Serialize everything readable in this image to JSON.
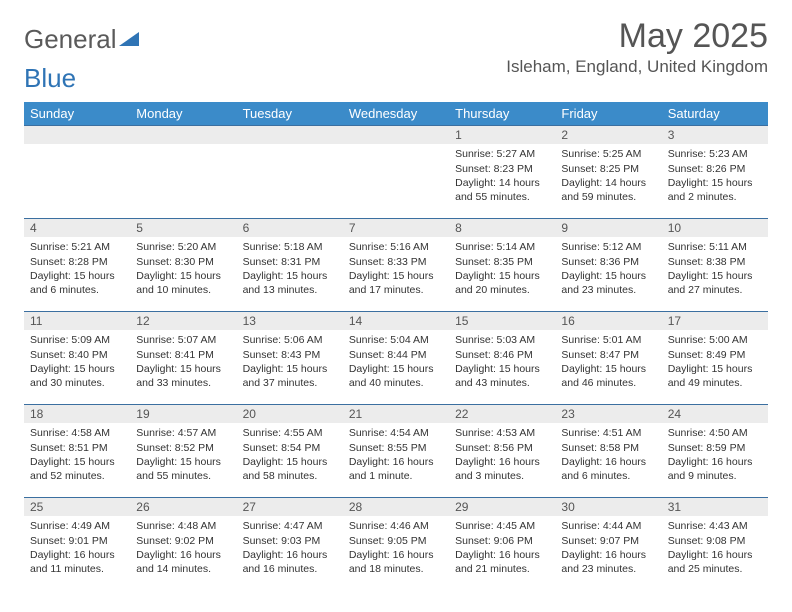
{
  "logo": {
    "text1": "General",
    "text2": "Blue",
    "color1": "#5a5a5a",
    "color2": "#2f74b5"
  },
  "title": "May 2025",
  "location": "Isleham, England, United Kingdom",
  "header_bg": "#3b8bc9",
  "rule_color": "#3b6fa0",
  "dayrow_bg": "#ececec",
  "weekdays": [
    "Sunday",
    "Monday",
    "Tuesday",
    "Wednesday",
    "Thursday",
    "Friday",
    "Saturday"
  ],
  "weeks": [
    [
      null,
      null,
      null,
      null,
      {
        "n": "1",
        "sr": "Sunrise: 5:27 AM",
        "ss": "Sunset: 8:23 PM",
        "d1": "Daylight: 14 hours",
        "d2": "and 55 minutes."
      },
      {
        "n": "2",
        "sr": "Sunrise: 5:25 AM",
        "ss": "Sunset: 8:25 PM",
        "d1": "Daylight: 14 hours",
        "d2": "and 59 minutes."
      },
      {
        "n": "3",
        "sr": "Sunrise: 5:23 AM",
        "ss": "Sunset: 8:26 PM",
        "d1": "Daylight: 15 hours",
        "d2": "and 2 minutes."
      }
    ],
    [
      {
        "n": "4",
        "sr": "Sunrise: 5:21 AM",
        "ss": "Sunset: 8:28 PM",
        "d1": "Daylight: 15 hours",
        "d2": "and 6 minutes."
      },
      {
        "n": "5",
        "sr": "Sunrise: 5:20 AM",
        "ss": "Sunset: 8:30 PM",
        "d1": "Daylight: 15 hours",
        "d2": "and 10 minutes."
      },
      {
        "n": "6",
        "sr": "Sunrise: 5:18 AM",
        "ss": "Sunset: 8:31 PM",
        "d1": "Daylight: 15 hours",
        "d2": "and 13 minutes."
      },
      {
        "n": "7",
        "sr": "Sunrise: 5:16 AM",
        "ss": "Sunset: 8:33 PM",
        "d1": "Daylight: 15 hours",
        "d2": "and 17 minutes."
      },
      {
        "n": "8",
        "sr": "Sunrise: 5:14 AM",
        "ss": "Sunset: 8:35 PM",
        "d1": "Daylight: 15 hours",
        "d2": "and 20 minutes."
      },
      {
        "n": "9",
        "sr": "Sunrise: 5:12 AM",
        "ss": "Sunset: 8:36 PM",
        "d1": "Daylight: 15 hours",
        "d2": "and 23 minutes."
      },
      {
        "n": "10",
        "sr": "Sunrise: 5:11 AM",
        "ss": "Sunset: 8:38 PM",
        "d1": "Daylight: 15 hours",
        "d2": "and 27 minutes."
      }
    ],
    [
      {
        "n": "11",
        "sr": "Sunrise: 5:09 AM",
        "ss": "Sunset: 8:40 PM",
        "d1": "Daylight: 15 hours",
        "d2": "and 30 minutes."
      },
      {
        "n": "12",
        "sr": "Sunrise: 5:07 AM",
        "ss": "Sunset: 8:41 PM",
        "d1": "Daylight: 15 hours",
        "d2": "and 33 minutes."
      },
      {
        "n": "13",
        "sr": "Sunrise: 5:06 AM",
        "ss": "Sunset: 8:43 PM",
        "d1": "Daylight: 15 hours",
        "d2": "and 37 minutes."
      },
      {
        "n": "14",
        "sr": "Sunrise: 5:04 AM",
        "ss": "Sunset: 8:44 PM",
        "d1": "Daylight: 15 hours",
        "d2": "and 40 minutes."
      },
      {
        "n": "15",
        "sr": "Sunrise: 5:03 AM",
        "ss": "Sunset: 8:46 PM",
        "d1": "Daylight: 15 hours",
        "d2": "and 43 minutes."
      },
      {
        "n": "16",
        "sr": "Sunrise: 5:01 AM",
        "ss": "Sunset: 8:47 PM",
        "d1": "Daylight: 15 hours",
        "d2": "and 46 minutes."
      },
      {
        "n": "17",
        "sr": "Sunrise: 5:00 AM",
        "ss": "Sunset: 8:49 PM",
        "d1": "Daylight: 15 hours",
        "d2": "and 49 minutes."
      }
    ],
    [
      {
        "n": "18",
        "sr": "Sunrise: 4:58 AM",
        "ss": "Sunset: 8:51 PM",
        "d1": "Daylight: 15 hours",
        "d2": "and 52 minutes."
      },
      {
        "n": "19",
        "sr": "Sunrise: 4:57 AM",
        "ss": "Sunset: 8:52 PM",
        "d1": "Daylight: 15 hours",
        "d2": "and 55 minutes."
      },
      {
        "n": "20",
        "sr": "Sunrise: 4:55 AM",
        "ss": "Sunset: 8:54 PM",
        "d1": "Daylight: 15 hours",
        "d2": "and 58 minutes."
      },
      {
        "n": "21",
        "sr": "Sunrise: 4:54 AM",
        "ss": "Sunset: 8:55 PM",
        "d1": "Daylight: 16 hours",
        "d2": "and 1 minute."
      },
      {
        "n": "22",
        "sr": "Sunrise: 4:53 AM",
        "ss": "Sunset: 8:56 PM",
        "d1": "Daylight: 16 hours",
        "d2": "and 3 minutes."
      },
      {
        "n": "23",
        "sr": "Sunrise: 4:51 AM",
        "ss": "Sunset: 8:58 PM",
        "d1": "Daylight: 16 hours",
        "d2": "and 6 minutes."
      },
      {
        "n": "24",
        "sr": "Sunrise: 4:50 AM",
        "ss": "Sunset: 8:59 PM",
        "d1": "Daylight: 16 hours",
        "d2": "and 9 minutes."
      }
    ],
    [
      {
        "n": "25",
        "sr": "Sunrise: 4:49 AM",
        "ss": "Sunset: 9:01 PM",
        "d1": "Daylight: 16 hours",
        "d2": "and 11 minutes."
      },
      {
        "n": "26",
        "sr": "Sunrise: 4:48 AM",
        "ss": "Sunset: 9:02 PM",
        "d1": "Daylight: 16 hours",
        "d2": "and 14 minutes."
      },
      {
        "n": "27",
        "sr": "Sunrise: 4:47 AM",
        "ss": "Sunset: 9:03 PM",
        "d1": "Daylight: 16 hours",
        "d2": "and 16 minutes."
      },
      {
        "n": "28",
        "sr": "Sunrise: 4:46 AM",
        "ss": "Sunset: 9:05 PM",
        "d1": "Daylight: 16 hours",
        "d2": "and 18 minutes."
      },
      {
        "n": "29",
        "sr": "Sunrise: 4:45 AM",
        "ss": "Sunset: 9:06 PM",
        "d1": "Daylight: 16 hours",
        "d2": "and 21 minutes."
      },
      {
        "n": "30",
        "sr": "Sunrise: 4:44 AM",
        "ss": "Sunset: 9:07 PM",
        "d1": "Daylight: 16 hours",
        "d2": "and 23 minutes."
      },
      {
        "n": "31",
        "sr": "Sunrise: 4:43 AM",
        "ss": "Sunset: 9:08 PM",
        "d1": "Daylight: 16 hours",
        "d2": "and 25 minutes."
      }
    ]
  ]
}
